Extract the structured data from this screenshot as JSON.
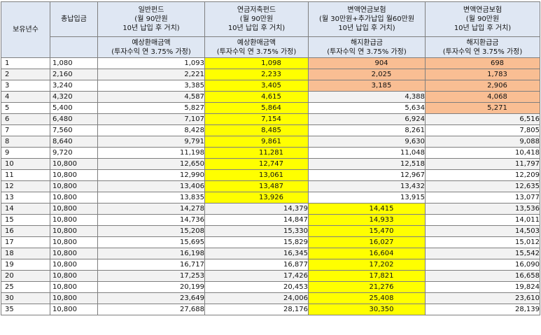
{
  "header": {
    "year_col": "보유년수",
    "paid_col": "총납입금",
    "groups": [
      {
        "title": "일반펀드",
        "sub1": "(월 90만원",
        "sub2": "10년 납입 후 거치)",
        "metric": "예상환매금액",
        "assump": "(투자수익 연 3.75% 가정)"
      },
      {
        "title": "연금저축펀드",
        "sub1": "(월 90만원",
        "sub2": "10년 납입 후 거치)",
        "metric": "예상환매금액",
        "assump": "(투자수익 연 3.75% 가정)"
      },
      {
        "title": "변액연금보험",
        "sub1": "(월 30만원+추가납입 월60만원",
        "sub2": "10년 납입 후 거치)",
        "metric": "해지환급금",
        "assump": "(투자수익 연 3.75% 가정)"
      },
      {
        "title": "변액연금보험",
        "sub1": "(월 90만원",
        "sub2": "10년 납입 후 거치)",
        "metric": "해지환급금",
        "assump": "(투자수익 연 3.75% 가정)"
      }
    ]
  },
  "colors": {
    "header_bg": "#dfe7f3",
    "yellow": "#ffff00",
    "orange": "#f9be93",
    "alt_row": "#f2f2f2"
  },
  "rows": [
    {
      "year": "1",
      "paid": "1,080",
      "v": [
        "1,093",
        "1,098",
        "904",
        "698"
      ],
      "h": [
        "",
        "y",
        "o",
        "o"
      ]
    },
    {
      "year": "2",
      "paid": "2,160",
      "v": [
        "2,221",
        "2,233",
        "2,025",
        "1,783"
      ],
      "h": [
        "",
        "y",
        "o",
        "o"
      ]
    },
    {
      "year": "3",
      "paid": "3,240",
      "v": [
        "3,385",
        "3,405",
        "3,185",
        "2,906"
      ],
      "h": [
        "",
        "y",
        "o",
        "o"
      ]
    },
    {
      "year": "4",
      "paid": "4,320",
      "v": [
        "4,587",
        "4,615",
        "4,388",
        "4,068"
      ],
      "h": [
        "",
        "y",
        "",
        "o"
      ]
    },
    {
      "year": "5",
      "paid": "5,400",
      "v": [
        "5,827",
        "5,864",
        "5,634",
        "5,271"
      ],
      "h": [
        "",
        "y",
        "",
        "o"
      ]
    },
    {
      "year": "6",
      "paid": "6,480",
      "v": [
        "7,107",
        "7,154",
        "6,924",
        "6,516"
      ],
      "h": [
        "",
        "y",
        "",
        ""
      ]
    },
    {
      "year": "7",
      "paid": "7,560",
      "v": [
        "8,428",
        "8,485",
        "8,261",
        "7,805"
      ],
      "h": [
        "",
        "y",
        "",
        ""
      ]
    },
    {
      "year": "8",
      "paid": "8,640",
      "v": [
        "9,791",
        "9,861",
        "9,630",
        "9,088"
      ],
      "h": [
        "",
        "y",
        "",
        ""
      ]
    },
    {
      "year": "9",
      "paid": "9,720",
      "v": [
        "11,198",
        "11,281",
        "11,048",
        "10,418"
      ],
      "h": [
        "",
        "y",
        "",
        ""
      ]
    },
    {
      "year": "10",
      "paid": "10,800",
      "v": [
        "12,650",
        "12,747",
        "12,518",
        "11,797"
      ],
      "h": [
        "",
        "y",
        "",
        ""
      ]
    },
    {
      "year": "11",
      "paid": "10,800",
      "v": [
        "12,990",
        "13,061",
        "12,967",
        "12,209"
      ],
      "h": [
        "",
        "y",
        "",
        ""
      ]
    },
    {
      "year": "12",
      "paid": "10,800",
      "v": [
        "13,406",
        "13,487",
        "13,432",
        "12,635"
      ],
      "h": [
        "",
        "y",
        "",
        ""
      ]
    },
    {
      "year": "13",
      "paid": "10,800",
      "v": [
        "13,835",
        "13,926",
        "13,915",
        "13,077"
      ],
      "h": [
        "",
        "y",
        "",
        ""
      ]
    },
    {
      "year": "14",
      "paid": "10,800",
      "v": [
        "14,278",
        "14,379",
        "14,415",
        "13,536"
      ],
      "h": [
        "",
        "",
        "y",
        ""
      ]
    },
    {
      "year": "15",
      "paid": "10,800",
      "v": [
        "14,736",
        "14,847",
        "14,933",
        "14,011"
      ],
      "h": [
        "",
        "",
        "y",
        ""
      ]
    },
    {
      "year": "16",
      "paid": "10,800",
      "v": [
        "15,208",
        "15,330",
        "15,470",
        "14,503"
      ],
      "h": [
        "",
        "",
        "y",
        ""
      ]
    },
    {
      "year": "17",
      "paid": "10,800",
      "v": [
        "15,695",
        "15,829",
        "16,027",
        "15,012"
      ],
      "h": [
        "",
        "",
        "y",
        ""
      ]
    },
    {
      "year": "18",
      "paid": "10,800",
      "v": [
        "16,198",
        "16,345",
        "16,604",
        "15,542"
      ],
      "h": [
        "",
        "",
        "y",
        ""
      ]
    },
    {
      "year": "19",
      "paid": "10,800",
      "v": [
        "16,717",
        "16,877",
        "17,202",
        "16,090"
      ],
      "h": [
        "",
        "",
        "y",
        ""
      ]
    },
    {
      "year": "20",
      "paid": "10,800",
      "v": [
        "17,253",
        "17,426",
        "17,821",
        "16,658"
      ],
      "h": [
        "",
        "",
        "y",
        ""
      ]
    },
    {
      "year": "25",
      "paid": "10,800",
      "v": [
        "20,199",
        "20,453",
        "21,276",
        "19,824"
      ],
      "h": [
        "",
        "",
        "y",
        ""
      ]
    },
    {
      "year": "30",
      "paid": "10,800",
      "v": [
        "23,649",
        "24,006",
        "25,408",
        "23,610"
      ],
      "h": [
        "",
        "",
        "y",
        ""
      ]
    },
    {
      "year": "35",
      "paid": "10,800",
      "v": [
        "27,688",
        "28,176",
        "30,350",
        "28,139"
      ],
      "h": [
        "",
        "",
        "y",
        ""
      ]
    }
  ]
}
